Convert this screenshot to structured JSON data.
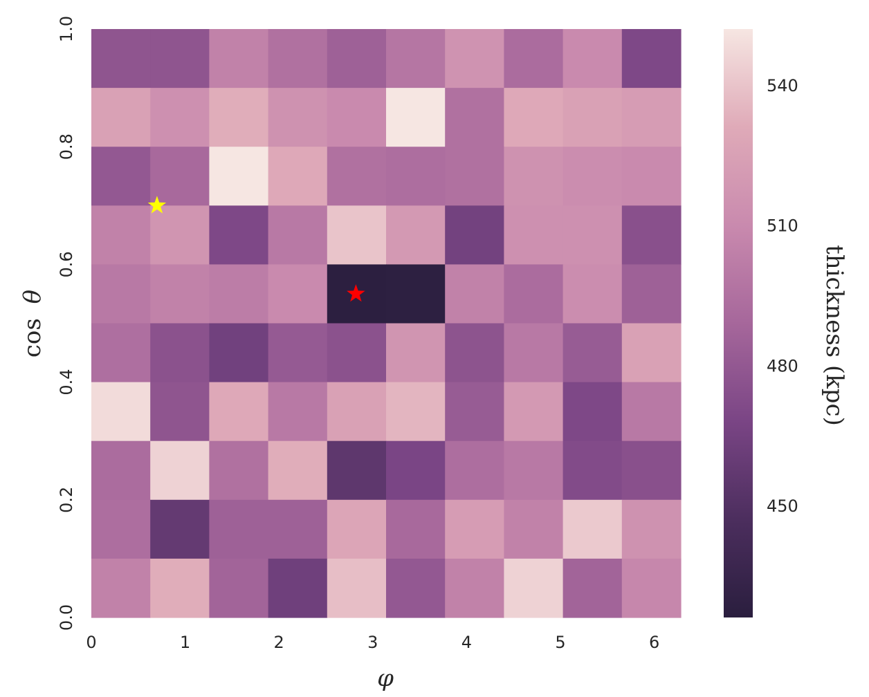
{
  "chart_data": {
    "type": "heatmap",
    "title": "",
    "xlabel": "φ",
    "ylabel_prefix": "cos",
    "ylabel_symbol": "θ",
    "colorbar_label": "thickness (kpc)",
    "xlim": [
      0,
      6.2832
    ],
    "ylim": [
      0,
      1
    ],
    "x_ticks": [
      0,
      1,
      2,
      3,
      4,
      5,
      6
    ],
    "y_ticks": [
      "0.0",
      "0.2",
      "0.4",
      "0.6",
      "0.8",
      "1.0"
    ],
    "colorbar_ticks": [
      450,
      480,
      510,
      540
    ],
    "colorbar_range": [
      426,
      552
    ],
    "colormap": [
      "#2a1e3e",
      "#4c2e5e",
      "#7a4585",
      "#a6679b",
      "#c98aae",
      "#dfaab8",
      "#f6e6e2"
    ],
    "rows_top_to_bottom": [
      [
        478,
        478,
        505,
        495,
        485,
        498,
        516,
        492,
        510,
        470
      ],
      [
        525,
        514,
        532,
        515,
        510,
        552,
        495,
        530,
        525,
        522
      ],
      [
        480,
        490,
        553,
        530,
        495,
        493,
        495,
        515,
        512,
        510
      ],
      [
        505,
        517,
        470,
        500,
        540,
        520,
        465,
        514,
        514,
        475
      ],
      [
        500,
        505,
        502,
        510,
        427,
        428,
        505,
        492,
        512,
        485
      ],
      [
        494,
        476,
        464,
        481,
        476,
        517,
        477,
        500,
        482,
        525
      ],
      [
        548,
        478,
        530,
        500,
        525,
        535,
        482,
        520,
        470,
        500
      ],
      [
        492,
        545,
        495,
        532,
        455,
        468,
        493,
        500,
        472,
        475
      ],
      [
        493,
        458,
        485,
        485,
        528,
        490,
        522,
        505,
        542,
        515
      ],
      [
        505,
        532,
        487,
        463,
        538,
        480,
        505,
        545,
        487,
        508
      ]
    ],
    "markers": [
      {
        "phi": 0.7,
        "cos_theta": 0.7,
        "color": "#ffff00"
      },
      {
        "phi": 2.82,
        "cos_theta": 0.55,
        "color": "#ff0000"
      }
    ]
  }
}
